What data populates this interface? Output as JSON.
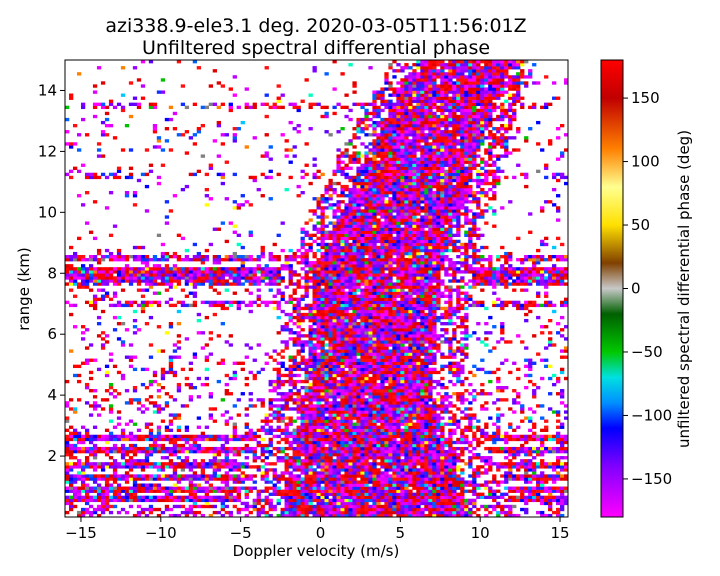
{
  "chart_data": {
    "type": "heatmap",
    "title_line1": "azi338.9-ele3.1 deg. 2020-03-05T11:56:01Z",
    "title_line2": "Unfiltered spectral differential phase",
    "xlabel": "Doppler velocity (m/s)",
    "ylabel": "range (km)",
    "xlim": [
      -16,
      15.5
    ],
    "ylim": [
      0,
      15
    ],
    "xticks": [
      -15,
      -10,
      -5,
      0,
      5,
      10,
      15
    ],
    "xtick_labels": [
      "−15",
      "−10",
      "−5",
      "0",
      "5",
      "10",
      "15"
    ],
    "yticks": [
      2,
      4,
      6,
      8,
      10,
      12,
      14
    ],
    "ytick_labels": [
      "2",
      "4",
      "6",
      "8",
      "10",
      "12",
      "14"
    ],
    "colorbar": {
      "label": "unfiltered spectral differential phase (deg)",
      "range": [
        -180,
        180
      ],
      "ticks": [
        -150,
        -100,
        -50,
        0,
        50,
        100,
        150
      ],
      "tick_labels": [
        "−150",
        "−100",
        "−50",
        "0",
        "50",
        "100",
        "150"
      ],
      "colormap_stops": [
        {
          "v": -180,
          "c": "#ff00ff"
        },
        {
          "v": -140,
          "c": "#8000ff"
        },
        {
          "v": -110,
          "c": "#0000ff"
        },
        {
          "v": -90,
          "c": "#0090ff"
        },
        {
          "v": -70,
          "c": "#00e0e0"
        },
        {
          "v": -50,
          "c": "#00c800"
        },
        {
          "v": -20,
          "c": "#006000"
        },
        {
          "v": 0,
          "c": "#c8c8c8"
        },
        {
          "v": 20,
          "c": "#804000"
        },
        {
          "v": 50,
          "c": "#ffe000"
        },
        {
          "v": 80,
          "c": "#ffff90"
        },
        {
          "v": 110,
          "c": "#ff8000"
        },
        {
          "v": 150,
          "c": "#c00000"
        },
        {
          "v": 180,
          "c": "#ff0000"
        }
      ]
    },
    "grid": false,
    "legend": "colorbar-right",
    "velocity_bin_m_s": 0.25,
    "range_bin_km": 0.1,
    "signal_core": {
      "description_free": true,
      "center_velocity_at_range": [
        [
          0,
          3.5
        ],
        [
          4,
          3.0
        ],
        [
          8,
          3.5
        ],
        [
          12,
          6.5
        ],
        [
          15,
          9.0
        ]
      ],
      "halfwidth_m_s_at_range": [
        [
          0,
          6.0
        ],
        [
          4,
          4.0
        ],
        [
          8,
          4.0
        ],
        [
          12,
          3.5
        ],
        [
          15,
          3.0
        ]
      ]
    },
    "noise_density_by_range": [
      [
        0,
        0.95
      ],
      [
        1,
        0.85
      ],
      [
        2,
        0.75
      ],
      [
        2.8,
        0.55
      ],
      [
        3.5,
        0.45
      ],
      [
        4.5,
        0.4
      ],
      [
        5.5,
        0.3
      ],
      [
        6.5,
        0.2
      ],
      [
        7.5,
        0.35
      ],
      [
        8.2,
        0.5
      ],
      [
        9,
        0.15
      ],
      [
        10,
        0.08
      ],
      [
        11,
        0.12
      ],
      [
        12,
        0.18
      ],
      [
        13,
        0.2
      ],
      [
        14,
        0.12
      ],
      [
        15,
        0.08
      ]
    ],
    "clutter_rows_km": [
      0.6,
      0.9,
      1.3,
      1.7,
      2.2,
      2.6,
      7.0,
      7.7,
      7.9,
      8.1,
      8.5,
      11.2,
      13.5
    ],
    "phase_mix": {
      "red_fraction": 0.35,
      "magenta_fraction": 0.25,
      "purple_fraction": 0.2,
      "blue_fraction": 0.12,
      "other_fraction": 0.08
    }
  }
}
